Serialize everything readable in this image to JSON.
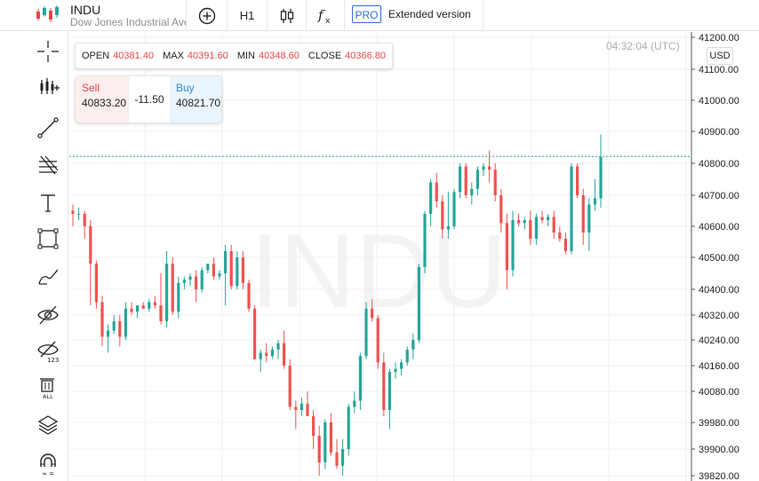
{
  "header": {
    "symbol": "INDU",
    "description": "Dow Jones Industrial Ave",
    "interval": "H1",
    "pro_badge": "PRO",
    "extended_label": "Extended version"
  },
  "ohlc": {
    "open_label": "OPEN",
    "open": "40381.40",
    "max_label": "MAX",
    "max": "40391.60",
    "min_label": "MIN",
    "min": "40348.60",
    "close_label": "CLOSE",
    "close": "40366.80"
  },
  "trade": {
    "sell_label": "Sell",
    "sell_price": "40833.20",
    "spread": "-11.50",
    "buy_label": "Buy",
    "buy_price": "40821.70"
  },
  "clock": "04:32:04 (UTC)",
  "currency": "USD",
  "watermark": "INDU",
  "colors": {
    "up": "#26a69a",
    "down": "#ef5350",
    "accent": "#2f6fd6",
    "price_line": "#26a69a"
  },
  "sidebar_tools": [
    "crosshair-icon",
    "indicators-icon",
    "trend-line-icon",
    "fib-icon",
    "text-tool-icon",
    "rectangle-icon",
    "brush-icon",
    "hide-drawings-icon",
    "hide-indicators-icon",
    "delete-all-icon",
    "layers-icon",
    "magnet-icon"
  ],
  "chart_data": {
    "type": "candlestick",
    "y_ticks": [
      "41200.00",
      "41100.00",
      "41000.00",
      "40900.00",
      "40800.00",
      "40700.00",
      "40600.00",
      "40500.00",
      "40400.00",
      "40320.00",
      "40240.00",
      "40160.00",
      "40080.00",
      "39980.00",
      "39900.00",
      "39820.00"
    ],
    "ylim": [
      39800,
      41220
    ],
    "current_price": 40821.7,
    "candles": [
      [
        40650,
        40670,
        40600,
        40640
      ],
      [
        40640,
        40660,
        40620,
        40640
      ],
      [
        40640,
        40650,
        40560,
        40600
      ],
      [
        40600,
        40620,
        40350,
        40480
      ],
      [
        40480,
        40490,
        40340,
        40360
      ],
      [
        40360,
        40380,
        40220,
        40250
      ],
      [
        40250,
        40290,
        40200,
        40270
      ],
      [
        40270,
        40320,
        40260,
        40300
      ],
      [
        40300,
        40320,
        40220,
        40250
      ],
      [
        40250,
        40360,
        40240,
        40340
      ],
      [
        40340,
        40360,
        40320,
        40330
      ],
      [
        40330,
        40350,
        40310,
        40350
      ],
      [
        40350,
        40360,
        40340,
        40340
      ],
      [
        40340,
        40370,
        40330,
        40360
      ],
      [
        40360,
        40380,
        40340,
        40350
      ],
      [
        40350,
        40450,
        40290,
        40300
      ],
      [
        40300,
        40520,
        40280,
        40480
      ],
      [
        40480,
        40500,
        40320,
        40330
      ],
      [
        40330,
        40440,
        40310,
        40420
      ],
      [
        40420,
        40440,
        40400,
        40430
      ],
      [
        40430,
        40450,
        40410,
        40440
      ],
      [
        40440,
        40460,
        40360,
        40400
      ],
      [
        40400,
        40470,
        40390,
        40460
      ],
      [
        40460,
        40480,
        40450,
        40480
      ],
      [
        40480,
        40500,
        40430,
        40440
      ],
      [
        40440,
        40460,
        40430,
        40450
      ],
      [
        40450,
        40540,
        40350,
        40520
      ],
      [
        40520,
        40540,
        40400,
        40410
      ],
      [
        40410,
        40520,
        40400,
        40500
      ],
      [
        40500,
        40520,
        40400,
        40420
      ],
      [
        40420,
        40430,
        40330,
        40340
      ],
      [
        40340,
        40350,
        40180,
        40180
      ],
      [
        40180,
        40210,
        40140,
        40200
      ],
      [
        40200,
        40230,
        40170,
        40190
      ],
      [
        40190,
        40220,
        40180,
        40210
      ],
      [
        40210,
        40240,
        40180,
        40230
      ],
      [
        40230,
        40270,
        40150,
        40160
      ],
      [
        40160,
        40180,
        40020,
        40030
      ],
      [
        40030,
        40050,
        39960,
        40020
      ],
      [
        40020,
        40060,
        40000,
        40040
      ],
      [
        40040,
        40080,
        40000,
        40000
      ],
      [
        40000,
        40020,
        39900,
        39940
      ],
      [
        39940,
        39970,
        39820,
        39860
      ],
      [
        39860,
        39990,
        39840,
        39980
      ],
      [
        39980,
        40010,
        39880,
        39890
      ],
      [
        39890,
        39930,
        39840,
        39850
      ],
      [
        39850,
        39930,
        39820,
        39900
      ],
      [
        39900,
        40040,
        39880,
        40030
      ],
      [
        40030,
        40080,
        40010,
        40050
      ],
      [
        40050,
        40200,
        40020,
        40190
      ],
      [
        40190,
        40360,
        40180,
        40340
      ],
      [
        40340,
        40370,
        40300,
        40310
      ],
      [
        40310,
        40320,
        40150,
        40170
      ],
      [
        40170,
        40200,
        40000,
        40020
      ],
      [
        40020,
        40150,
        39960,
        40140
      ],
      [
        40140,
        40170,
        40120,
        40150
      ],
      [
        40150,
        40180,
        40130,
        40170
      ],
      [
        40170,
        40220,
        40160,
        40210
      ],
      [
        40210,
        40260,
        40180,
        40240
      ],
      [
        40240,
        40480,
        40230,
        40470
      ],
      [
        40470,
        40650,
        40450,
        40640
      ],
      [
        40640,
        40750,
        40600,
        40740
      ],
      [
        40740,
        40770,
        40660,
        40680
      ],
      [
        40680,
        40700,
        40560,
        40590
      ],
      [
        40590,
        40710,
        40560,
        40600
      ],
      [
        40600,
        40720,
        40590,
        40710
      ],
      [
        40710,
        40800,
        40690,
        40790
      ],
      [
        40790,
        40800,
        40690,
        40700
      ],
      [
        40700,
        40740,
        40670,
        40720
      ],
      [
        40720,
        40790,
        40700,
        40780
      ],
      [
        40780,
        40800,
        40760,
        40790
      ],
      [
        40790,
        40840,
        40740,
        40780
      ],
      [
        40780,
        40800,
        40680,
        40700
      ],
      [
        40700,
        40720,
        40580,
        40610
      ],
      [
        40610,
        40640,
        40400,
        40460
      ],
      [
        40460,
        40650,
        40440,
        40620
      ],
      [
        40620,
        40640,
        40600,
        40610
      ],
      [
        40610,
        40630,
        40590,
        40620
      ],
      [
        40620,
        40650,
        40540,
        40560
      ],
      [
        40560,
        40640,
        40540,
        40630
      ],
      [
        40630,
        40650,
        40610,
        40620
      ],
      [
        40620,
        40640,
        40600,
        40630
      ],
      [
        40630,
        40650,
        40560,
        40580
      ],
      [
        40580,
        40600,
        40550,
        40560
      ],
      [
        40560,
        40580,
        40510,
        40520
      ],
      [
        40520,
        40800,
        40510,
        40790
      ],
      [
        40790,
        40800,
        40690,
        40700
      ],
      [
        40700,
        40720,
        40540,
        40580
      ],
      [
        40580,
        40690,
        40520,
        40670
      ],
      [
        40670,
        40750,
        40650,
        40690
      ],
      [
        40690,
        40890,
        40660,
        40820
      ]
    ]
  }
}
